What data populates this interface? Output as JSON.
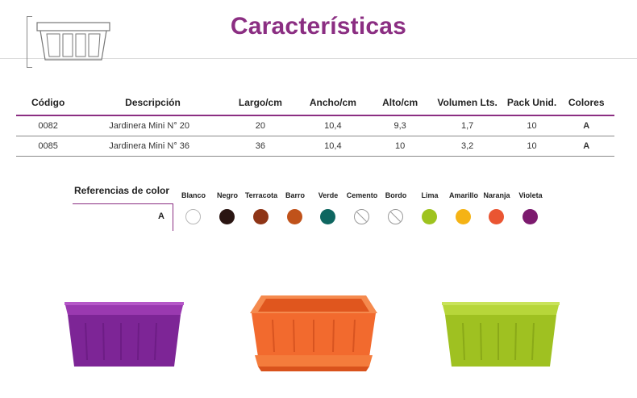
{
  "title": "Características",
  "table": {
    "headers": [
      "Código",
      "Descripción",
      "Largo/cm",
      "Ancho/cm",
      "Alto/cm",
      "Volumen Lts.",
      "Pack Unid.",
      "Colores"
    ],
    "rows": [
      [
        "0082",
        "Jardinera Mini N° 20",
        "20",
        "10,4",
        "9,3",
        "1,7",
        "10",
        "A"
      ],
      [
        "0085",
        "Jardinera Mini N° 36",
        "36",
        "10,4",
        "10",
        "3,2",
        "10",
        "A"
      ]
    ]
  },
  "color_refs": {
    "title": "Referencias de color",
    "row_label": "A",
    "colors": [
      {
        "name": "Blanco",
        "hex": "#ffffff"
      },
      {
        "name": "Negro",
        "hex": "#2a1512"
      },
      {
        "name": "Terracota",
        "hex": "#8e3416"
      },
      {
        "name": "Barro",
        "hex": "#c0521a"
      },
      {
        "name": "Verde",
        "hex": "#0e6660"
      },
      {
        "name": "Cemento",
        "hex": "none"
      },
      {
        "name": "Bordo",
        "hex": "none"
      },
      {
        "name": "Lima",
        "hex": "#9ec31f"
      },
      {
        "name": "Amarillo",
        "hex": "#f5b315"
      },
      {
        "name": "Naranja",
        "hex": "#ea5532"
      },
      {
        "name": "Violeta",
        "hex": "#7c1a6e"
      }
    ]
  },
  "products": [
    {
      "color": "violeta",
      "hex": "#8a2aa0"
    },
    {
      "color": "naranja",
      "hex": "#f26a2e"
    },
    {
      "color": "lima",
      "hex": "#a8c82a"
    }
  ]
}
